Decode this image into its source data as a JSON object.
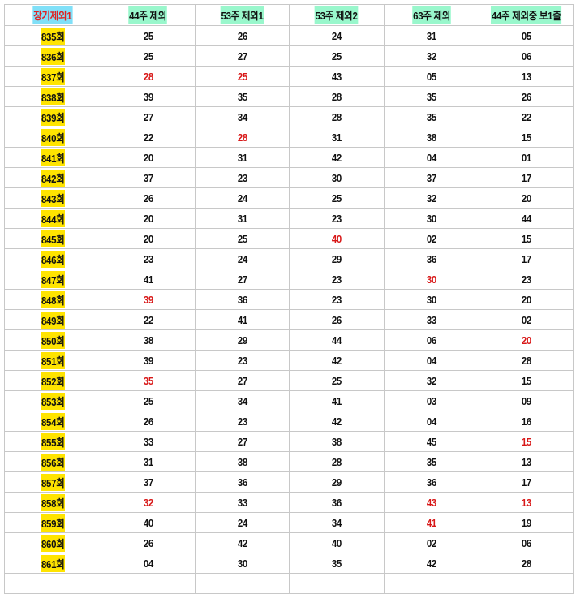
{
  "headers": [
    "장기제외1",
    "44주 제외",
    "53주 제외1",
    "53주 제외2",
    "63주 제외",
    "44주 제외중 보1출"
  ],
  "colors": {
    "header_first_bg": "#80e0f8",
    "header_first_text": "#e02020",
    "header_bg": "#99f7cc",
    "round_bg": "#ffe400",
    "highlight_text": "#d81818",
    "grid": "#c8c8c8"
  },
  "rows": [
    {
      "round": "835회",
      "cells": [
        "25",
        "26",
        "24",
        "31",
        "05"
      ],
      "red": []
    },
    {
      "round": "836회",
      "cells": [
        "25",
        "27",
        "25",
        "32",
        "06"
      ],
      "red": []
    },
    {
      "round": "837회",
      "cells": [
        "28",
        "25",
        "43",
        "05",
        "13"
      ],
      "red": [
        0,
        1
      ]
    },
    {
      "round": "838회",
      "cells": [
        "39",
        "35",
        "28",
        "35",
        "26"
      ],
      "red": []
    },
    {
      "round": "839회",
      "cells": [
        "27",
        "34",
        "28",
        "35",
        "22"
      ],
      "red": []
    },
    {
      "round": "840회",
      "cells": [
        "22",
        "28",
        "31",
        "38",
        "15"
      ],
      "red": [
        1
      ]
    },
    {
      "round": "841회",
      "cells": [
        "20",
        "31",
        "42",
        "04",
        "01"
      ],
      "red": []
    },
    {
      "round": "842회",
      "cells": [
        "37",
        "23",
        "30",
        "37",
        "17"
      ],
      "red": []
    },
    {
      "round": "843회",
      "cells": [
        "26",
        "24",
        "25",
        "32",
        "20"
      ],
      "red": []
    },
    {
      "round": "844회",
      "cells": [
        "20",
        "31",
        "23",
        "30",
        "44"
      ],
      "red": []
    },
    {
      "round": "845회",
      "cells": [
        "20",
        "25",
        "40",
        "02",
        "15"
      ],
      "red": [
        2
      ]
    },
    {
      "round": "846회",
      "cells": [
        "23",
        "24",
        "29",
        "36",
        "17"
      ],
      "red": []
    },
    {
      "round": "847회",
      "cells": [
        "41",
        "27",
        "23",
        "30",
        "23"
      ],
      "red": [
        3
      ]
    },
    {
      "round": "848회",
      "cells": [
        "39",
        "36",
        "23",
        "30",
        "20"
      ],
      "red": [
        0
      ]
    },
    {
      "round": "849회",
      "cells": [
        "22",
        "41",
        "26",
        "33",
        "02"
      ],
      "red": []
    },
    {
      "round": "850회",
      "cells": [
        "38",
        "29",
        "44",
        "06",
        "20"
      ],
      "red": [
        4
      ]
    },
    {
      "round": "851회",
      "cells": [
        "39",
        "23",
        "42",
        "04",
        "28"
      ],
      "red": []
    },
    {
      "round": "852회",
      "cells": [
        "35",
        "27",
        "25",
        "32",
        "15"
      ],
      "red": [
        0
      ]
    },
    {
      "round": "853회",
      "cells": [
        "25",
        "34",
        "41",
        "03",
        "09"
      ],
      "red": []
    },
    {
      "round": "854회",
      "cells": [
        "26",
        "23",
        "42",
        "04",
        "16"
      ],
      "red": []
    },
    {
      "round": "855회",
      "cells": [
        "33",
        "27",
        "38",
        "45",
        "15"
      ],
      "red": [
        4
      ]
    },
    {
      "round": "856회",
      "cells": [
        "31",
        "38",
        "28",
        "35",
        "13"
      ],
      "red": []
    },
    {
      "round": "857회",
      "cells": [
        "37",
        "36",
        "29",
        "36",
        "17"
      ],
      "red": []
    },
    {
      "round": "858회",
      "cells": [
        "32",
        "33",
        "36",
        "43",
        "13"
      ],
      "red": [
        0,
        3,
        4
      ]
    },
    {
      "round": "859회",
      "cells": [
        "40",
        "24",
        "34",
        "41",
        "19"
      ],
      "red": [
        3
      ]
    },
    {
      "round": "860회",
      "cells": [
        "26",
        "42",
        "40",
        "02",
        "06"
      ],
      "red": []
    },
    {
      "round": "861회",
      "cells": [
        "04",
        "30",
        "35",
        "42",
        "28"
      ],
      "red": []
    }
  ]
}
